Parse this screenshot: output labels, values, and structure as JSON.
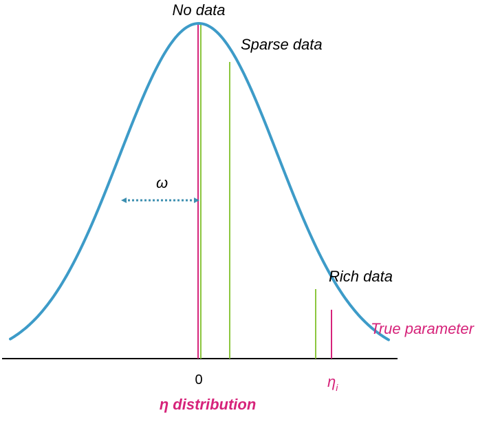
{
  "labels": {
    "no_data": "No data",
    "sparse_data": "Sparse data",
    "rich_data": "Rich data",
    "true_parameter": "True parameter",
    "omega": "ω",
    "zero_tick": "0",
    "eta_symbol": "η",
    "eta_subscript": "i",
    "distribution_caption": "η distribution"
  },
  "colors": {
    "curve": "#3d9bc8",
    "magenta": "#d6237a",
    "green": "#8cc63e",
    "axis": "#000000",
    "omega_arrow": "#3d8fb0",
    "text": "#000000"
  },
  "icons": {
    "omega_arrow": "double-headed-dotted-arrow"
  }
}
